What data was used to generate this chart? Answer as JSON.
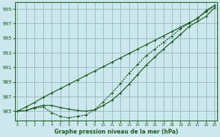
{
  "title": "Graphe pression niveau de la mer (hPa)",
  "bg_color": "#cce8ee",
  "grid_color": "#99bbbb",
  "line_color": "#1a5c1a",
  "xlim": [
    -0.3,
    23.3
  ],
  "ylim": [
    983.7,
    999.9
  ],
  "yticks": [
    985,
    987,
    989,
    991,
    993,
    995,
    997,
    999
  ],
  "xticks": [
    0,
    1,
    2,
    3,
    4,
    5,
    6,
    7,
    8,
    9,
    10,
    11,
    12,
    13,
    14,
    15,
    16,
    17,
    18,
    19,
    20,
    21,
    22,
    23
  ],
  "line_straight_y": [
    985.0,
    985.6,
    986.2,
    986.9,
    987.5,
    988.1,
    988.7,
    989.3,
    989.9,
    990.5,
    991.1,
    991.7,
    992.3,
    992.9,
    993.5,
    994.1,
    994.7,
    995.3,
    995.9,
    996.5,
    997.1,
    997.7,
    998.8,
    999.5
  ],
  "line_mid_y": [
    985.0,
    985.1,
    985.5,
    985.8,
    985.8,
    985.5,
    985.3,
    985.1,
    985.0,
    985.2,
    985.8,
    986.5,
    987.5,
    988.7,
    990.0,
    991.3,
    992.4,
    993.5,
    994.5,
    995.5,
    996.6,
    997.3,
    998.0,
    999.2
  ],
  "line_dip_y": [
    985.0,
    985.1,
    985.4,
    985.6,
    984.8,
    984.3,
    984.1,
    984.3,
    984.5,
    985.2,
    986.3,
    987.5,
    988.8,
    990.2,
    991.4,
    992.6,
    993.5,
    994.4,
    995.3,
    996.3,
    997.0,
    997.8,
    998.6,
    999.5
  ]
}
